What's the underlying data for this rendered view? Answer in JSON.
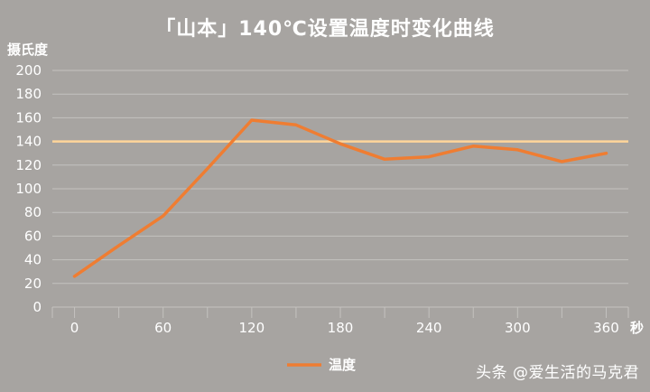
{
  "chart_data": {
    "type": "line",
    "title": "「山本」140℃设置温度时变化曲线",
    "ylabel": "摄氏度",
    "xlabel": "秒",
    "ylim": [
      0,
      200
    ],
    "xlim": [
      -15,
      375
    ],
    "yticks": [
      0,
      20,
      40,
      60,
      80,
      100,
      120,
      140,
      160,
      180,
      200
    ],
    "xticks": [
      0,
      60,
      120,
      180,
      240,
      300,
      360
    ],
    "grid": true,
    "legend_position": "bottom",
    "series": [
      {
        "name": "温度",
        "color": "#ef7d32",
        "x": [
          0,
          30,
          60,
          90,
          120,
          150,
          180,
          210,
          240,
          270,
          300,
          330,
          360
        ],
        "y": [
          26,
          52,
          77,
          117,
          158,
          154,
          138,
          125,
          127,
          136,
          133,
          123,
          130
        ]
      }
    ],
    "reference_lines": [
      {
        "y": 140,
        "color": "#ffd59a"
      }
    ]
  },
  "watermark": "头条 @爱生活的马克君",
  "colors": {
    "background": "#a7a4a1",
    "grid": "#c4c2bf",
    "series": "#ef7d32",
    "reference": "#ffd59a"
  }
}
